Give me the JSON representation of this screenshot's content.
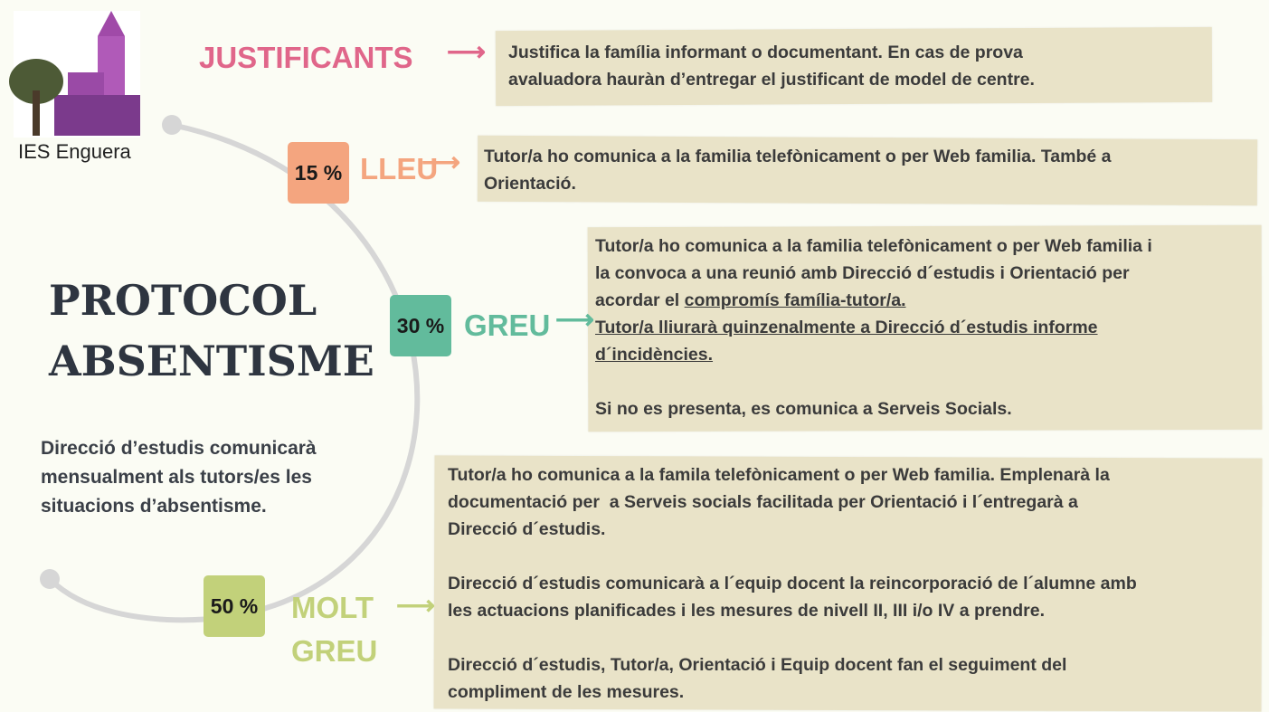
{
  "logo": {
    "label": "IES Enguera"
  },
  "title": [
    "PROTOCOL",
    "ABSENTISME"
  ],
  "note": [
    "Direcció d’estudis comunicarà",
    "mensualment als tutors/es les",
    "situacions d’absentisme."
  ],
  "levels": [
    {
      "label": "JUSTIFICANTS",
      "color": "#e0668a",
      "paragraphs": [
        [
          "Justifica la família informant o documentant. En cas de prova",
          "avaluadora hauràn d’entregar el justificant de model de centre."
        ]
      ]
    },
    {
      "percent": "15 %",
      "label": "LLEU",
      "color": "#f4a57f",
      "paragraphs": [
        [
          "Tutor/a ho comunica a la familia telefònicament o per Web familia. També a",
          "Orientació."
        ]
      ]
    },
    {
      "percent": "30 %",
      "label": "GREU",
      "color": "#62bb9c",
      "paragraphs": [
        [
          "Tutor/a ho comunica a la familia telefònicament o per Web familia i",
          "la convoca a una reunió amb Direcció d´estudis i Orientació per",
          [
            {
              "text": "acordar el "
            },
            {
              "text": "compromís família-tutor/a.",
              "underline": true
            }
          ],
          [
            {
              "text": "Tutor/a lliurarà quinzenalmente a Direcció d´estudis informe",
              "underline": true
            }
          ],
          [
            {
              "text": "d´incidències.",
              "underline": true
            }
          ]
        ],
        [
          "Si no es presenta, es comunica a Serveis Socials."
        ]
      ]
    },
    {
      "percent": "50 %",
      "label": "MOLT GREU",
      "color": "#c2d17a",
      "paragraphs": [
        [
          "Tutor/a ho comunica a la famila telefònicament o per Web familia. Emplenarà la",
          "documentació per  a Serveis socials facilitada per Orientació i l´entregarà a",
          "Direcció d´estudis."
        ],
        [
          "Direcció d´estudis comunicarà a l´equip docent la reincorporació de l´alumne amb",
          "les actuacions planificades i les mesures de nivell II, III i/o IV a prendre."
        ],
        [
          "Direcció d´estudis, Tutor/a, Orientació i Equip docent fan el seguiment del",
          "compliment de les mesures."
        ]
      ]
    }
  ]
}
